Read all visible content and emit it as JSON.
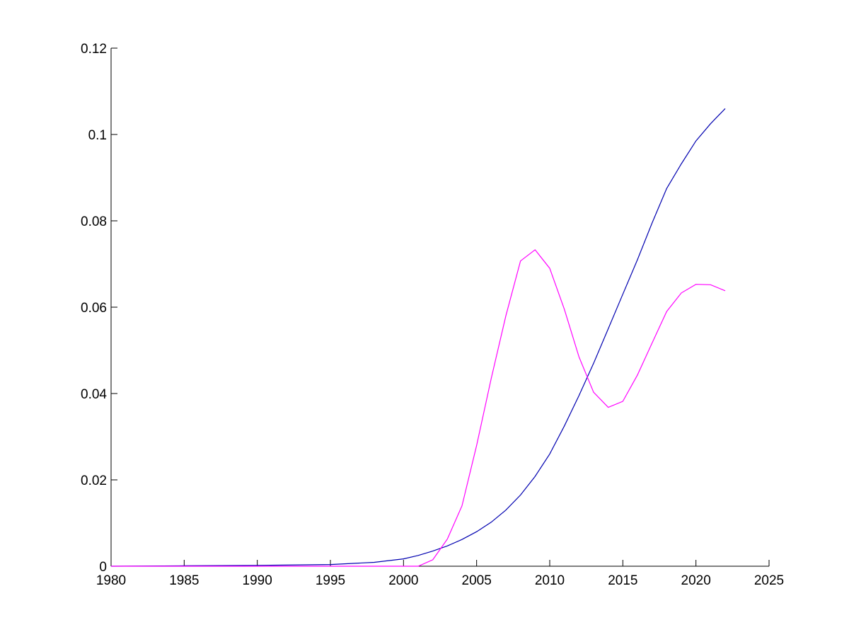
{
  "chart_data": {
    "type": "line",
    "title": "",
    "xlabel": "",
    "ylabel": "",
    "xlim": [
      1980,
      2025
    ],
    "ylim": [
      0,
      0.12
    ],
    "xticks": [
      "1980",
      "1985",
      "1990",
      "1995",
      "2000",
      "2005",
      "2010",
      "2015",
      "2020",
      "2025"
    ],
    "yticks": [
      "0",
      "0.02",
      "0.04",
      "0.06",
      "0.08",
      "0.1",
      "0.12"
    ],
    "grid": false,
    "legend": "none",
    "series": [
      {
        "color": "#0000b0",
        "x": [
          1980,
          1985,
          1990,
          1995,
          1998,
          2000,
          2001,
          2002,
          2003,
          2004,
          2005,
          2006,
          2007,
          2008,
          2009,
          2010,
          2011,
          2012,
          2013,
          2014,
          2015,
          2016,
          2017,
          2018,
          2019,
          2020,
          2021,
          2022
        ],
        "y": [
          0,
          0.0001,
          0.0002,
          0.0004,
          0.0009,
          0.0017,
          0.0025,
          0.0035,
          0.0047,
          0.0062,
          0.008,
          0.0102,
          0.013,
          0.0165,
          0.0208,
          0.026,
          0.0325,
          0.0395,
          0.047,
          0.055,
          0.063,
          0.071,
          0.0795,
          0.0875,
          0.0932,
          0.0985,
          0.1025,
          0.106
        ]
      },
      {
        "color": "#ff00ff",
        "x": [
          1980,
          1985,
          1990,
          1995,
          2000,
          2001,
          2002,
          2003,
          2004,
          2005,
          2006,
          2007,
          2008,
          2009,
          2010,
          2011,
          2012,
          2013,
          2014,
          2015,
          2016,
          2017,
          2018,
          2019,
          2020,
          2021,
          2022
        ],
        "y": [
          0,
          0,
          0,
          0,
          0,
          0,
          0.0015,
          0.0063,
          0.014,
          0.028,
          0.0435,
          0.058,
          0.0707,
          0.0733,
          0.069,
          0.0595,
          0.0485,
          0.0403,
          0.0368,
          0.0382,
          0.0443,
          0.0517,
          0.059,
          0.0633,
          0.0653,
          0.0652,
          0.0638
        ]
      }
    ]
  }
}
